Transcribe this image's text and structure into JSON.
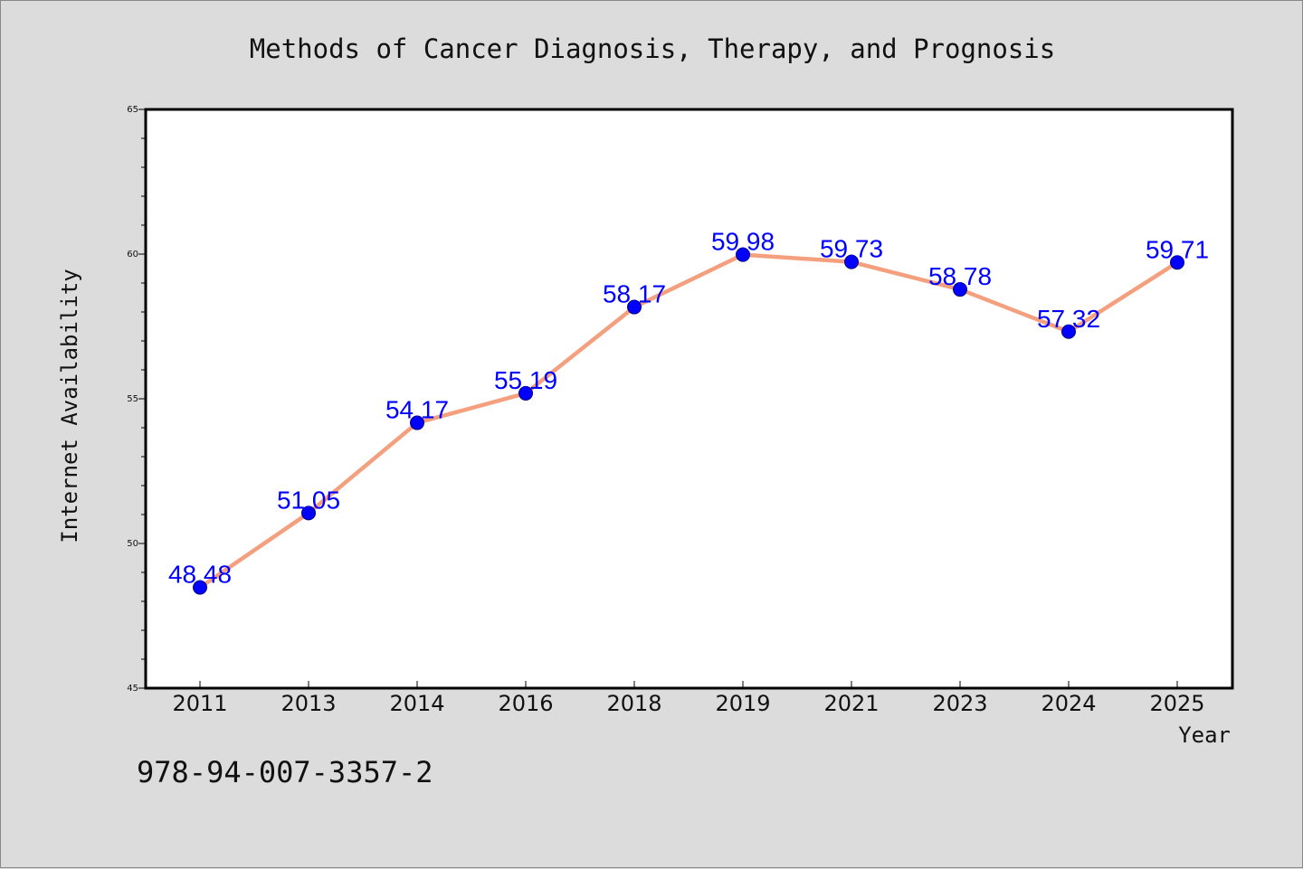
{
  "chart_data": {
    "type": "line",
    "title": "Methods of Cancer Diagnosis, Therapy, and Prognosis",
    "xlabel": "Year",
    "ylabel": "Internet Availability",
    "categories": [
      "2011",
      "2013",
      "2014",
      "2016",
      "2018",
      "2019",
      "2021",
      "2023",
      "2024",
      "2025"
    ],
    "values": [
      48.48,
      51.05,
      54.17,
      55.19,
      58.17,
      59.98,
      59.73,
      58.78,
      57.32,
      59.71
    ],
    "data_labels": [
      "48.48",
      "51.05",
      "54.17",
      "55.19",
      "58.17",
      "59.98",
      "59.73",
      "58.78",
      "57.32",
      "59.71"
    ],
    "ylim": [
      45,
      65
    ],
    "yticks": [
      "45",
      "50",
      "55",
      "60",
      "65"
    ],
    "grid": false,
    "legend": "none",
    "line_color": "#f4a07e",
    "marker_color": "#0000ff",
    "label_color": "#0000ff"
  },
  "footer": {
    "isbn": "978-94-007-3357-2"
  }
}
